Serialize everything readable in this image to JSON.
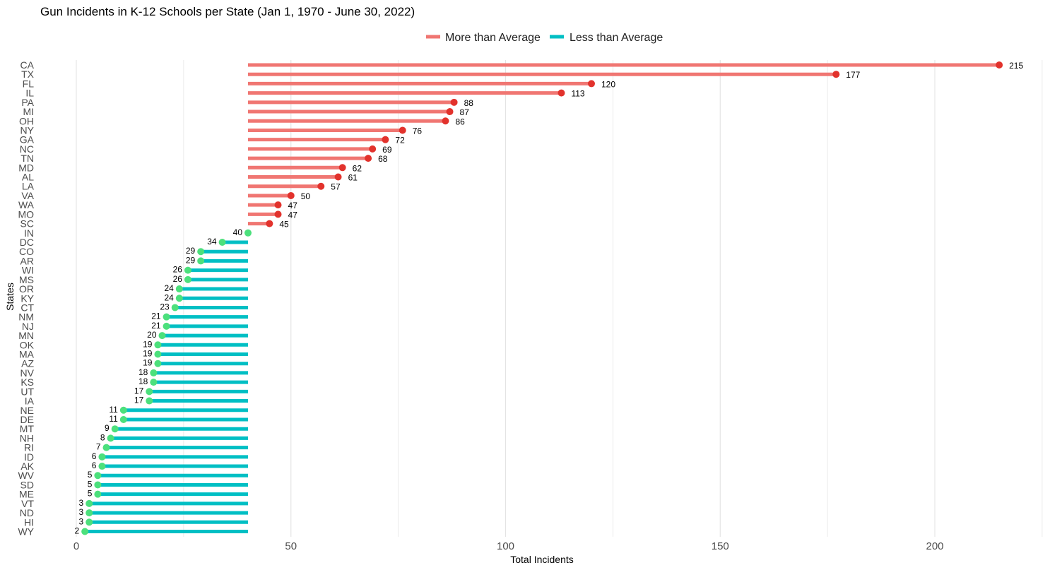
{
  "chart_data": {
    "type": "lollipop",
    "title": "Gun Incidents in K-12 Schools per State (Jan 1, 1970 - June 30, 2022)",
    "xlabel": "Total Incidents",
    "ylabel": "States",
    "xlim": [
      0,
      225
    ],
    "x_ticks": [
      "0",
      "50",
      "100",
      "150",
      "200"
    ],
    "x_tick_values": [
      0,
      50,
      100,
      150,
      200
    ],
    "baseline": 40,
    "grid": "vertical",
    "legend": {
      "placement": "top-center",
      "items": [
        {
          "label": "More than Average",
          "color": "#F07672"
        },
        {
          "label": "Less than Average",
          "color": "#00BFC4"
        }
      ]
    },
    "colors": {
      "above_line": "#F07672",
      "above_point": "#E2322C",
      "below_line": "#00BFC4",
      "below_point": "#4CE07C",
      "grid": "#e3e3e3"
    },
    "states": [
      "CA",
      "TX",
      "FL",
      "IL",
      "PA",
      "MI",
      "OH",
      "NY",
      "GA",
      "NC",
      "TN",
      "MD",
      "AL",
      "LA",
      "VA",
      "WA",
      "MO",
      "SC",
      "IN",
      "DC",
      "CO",
      "AR",
      "WI",
      "MS",
      "OR",
      "KY",
      "CT",
      "NM",
      "NJ",
      "MN",
      "OK",
      "MA",
      "AZ",
      "NV",
      "KS",
      "UT",
      "IA",
      "NE",
      "DE",
      "MT",
      "NH",
      "RI",
      "ID",
      "AK",
      "WV",
      "SD",
      "ME",
      "VT",
      "ND",
      "HI",
      "WY"
    ],
    "values": [
      215,
      177,
      120,
      113,
      88,
      87,
      86,
      76,
      72,
      69,
      68,
      62,
      61,
      57,
      50,
      47,
      47,
      45,
      40,
      34,
      29,
      29,
      26,
      26,
      24,
      24,
      23,
      21,
      21,
      20,
      19,
      19,
      19,
      18,
      18,
      17,
      17,
      11,
      11,
      9,
      8,
      7,
      6,
      6,
      5,
      5,
      5,
      3,
      3,
      3,
      2
    ],
    "value_labels": [
      "215",
      "177",
      "120",
      "113",
      "88",
      "87",
      "86",
      "76",
      "72",
      "69",
      "68",
      "62",
      "61",
      "57",
      "50",
      "47",
      "47",
      "45",
      "40",
      "34",
      "29",
      "29",
      "26",
      "26",
      "24",
      "24",
      "23",
      "21",
      "21",
      "20",
      "19",
      "19",
      "19",
      "18",
      "18",
      "17",
      "17",
      "11",
      "11",
      "9",
      "8",
      "7",
      "6",
      "6",
      "5",
      "5",
      "5",
      "3",
      "3",
      "3",
      "2"
    ]
  }
}
